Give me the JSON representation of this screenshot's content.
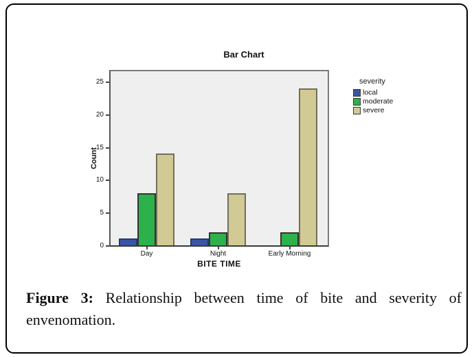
{
  "chart_data": {
    "type": "bar",
    "title": "Bar Chart",
    "xlabel": "BITE TIME",
    "ylabel": "Count",
    "categories": [
      "Day",
      "Night",
      "Early Morning"
    ],
    "series": [
      {
        "name": "local",
        "values": [
          1,
          1,
          0
        ],
        "color": "#3a55a5",
        "border": "#243a6b"
      },
      {
        "name": "moderate",
        "values": [
          8,
          2,
          2
        ],
        "color": "#2db14b",
        "border": "#333333"
      },
      {
        "name": "severe",
        "values": [
          14,
          8,
          24
        ],
        "color": "#d2ca94",
        "border": "#6f6f5c"
      }
    ],
    "legend": {
      "title": "severity",
      "position": "right"
    },
    "yticks": [
      0,
      5,
      10,
      15,
      20,
      25
    ],
    "ylim": [
      0,
      26.8
    ],
    "grid": false,
    "plot_bg": "#efefef",
    "frame_color": "#7a7a7a"
  },
  "caption": {
    "label": "Figure 3:",
    "line1": "Relationship between time of bite and severity of",
    "line2": "envenomation."
  }
}
